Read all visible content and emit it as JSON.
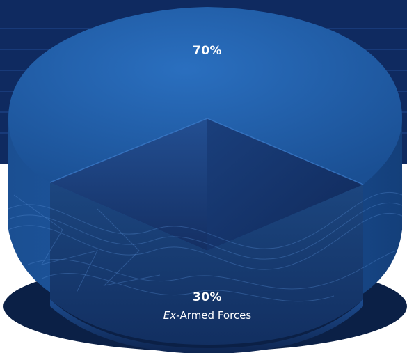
{
  "chart_data": {
    "type": "pie",
    "title": "",
    "slices": [
      {
        "label": "",
        "value": 70,
        "value_label": "70%",
        "color": "#1f5ea8"
      },
      {
        "label": "Ex-Armed Forces",
        "label_italic_part": "Ex-",
        "label_rest": "Armed Forces",
        "value": 30,
        "value_label": "30%",
        "color": "#173f78"
      }
    ],
    "legend": "none",
    "style": "3d-cylinder"
  }
}
